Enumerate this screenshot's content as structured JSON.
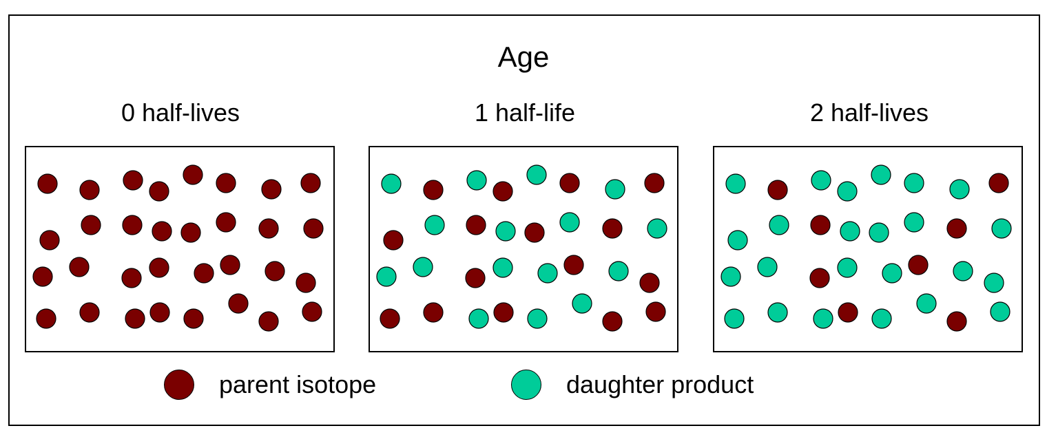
{
  "title": "Age",
  "colors": {
    "parent": "#7a0000",
    "daughter": "#00cc99",
    "stroke": "#000000"
  },
  "panels": [
    {
      "label": "0 half-lives",
      "rows": [
        "PPPPPPPP",
        "PPPPPPPP",
        "PPPPPPPP",
        "PPPPPPPP"
      ],
      "parent_count": 32,
      "daughter_count": 0
    },
    {
      "label": "1 half-life",
      "rows": [
        "DPDPDPDP",
        "PDPDPDPD",
        "DDPDDPDP",
        "PPDPDDPP"
      ],
      "parent_count": 16,
      "daughter_count": 16
    },
    {
      "label": "2 half-lives",
      "rows": [
        "DPDDDDDP",
        "DDPDDDPD",
        "DDPDDPDD",
        "DDDPDDPD"
      ],
      "parent_count": 8,
      "daughter_count": 24
    }
  ],
  "positions": [
    [
      [
        33,
        55
      ],
      [
        94,
        64
      ],
      [
        157,
        50
      ],
      [
        195,
        66
      ],
      [
        244,
        42
      ],
      [
        292,
        54
      ],
      [
        358,
        63
      ],
      [
        415,
        54
      ]
    ],
    [
      [
        36,
        137
      ],
      [
        96,
        115
      ],
      [
        156,
        115
      ],
      [
        199,
        124
      ],
      [
        241,
        126
      ],
      [
        292,
        111
      ],
      [
        354,
        120
      ],
      [
        419,
        120
      ]
    ],
    [
      [
        26,
        190
      ],
      [
        79,
        176
      ],
      [
        155,
        192
      ],
      [
        195,
        177
      ],
      [
        260,
        185
      ],
      [
        298,
        173
      ],
      [
        363,
        182
      ],
      [
        408,
        199
      ]
    ],
    [
      [
        31,
        251
      ],
      [
        94,
        242
      ],
      [
        160,
        251
      ],
      [
        196,
        242
      ],
      [
        245,
        251
      ],
      [
        310,
        229
      ],
      [
        354,
        255
      ],
      [
        417,
        241
      ]
    ]
  ],
  "legend": [
    {
      "key": "parent",
      "label": "parent isotope",
      "icon": "parent-isotope-circle"
    },
    {
      "key": "daughter",
      "label": "daughter product",
      "icon": "daughter-product-circle"
    }
  ]
}
